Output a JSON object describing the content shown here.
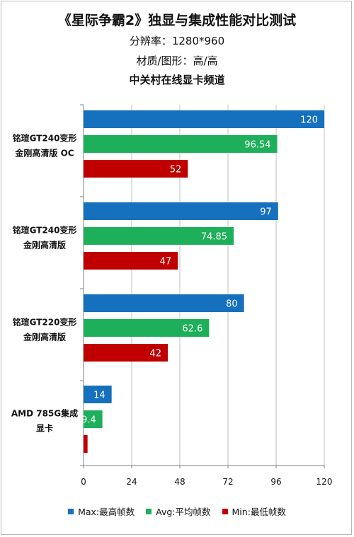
{
  "titles": {
    "main": "《星际争霸2》独显与集成性能对比测试",
    "resolution": "分辨率：1280*960",
    "quality": "材质/图形：高/高",
    "source": "中关村在线显卡频道"
  },
  "colors": {
    "max": "#1570BE",
    "avg": "#1EAF5A",
    "min": "#C00000",
    "grid": "#bfbfbf",
    "axis": "#7f7f7f"
  },
  "chart_data": {
    "type": "bar",
    "orientation": "horizontal",
    "categories": [
      [
        "铭瑄GT240变形",
        "金刚高清版 OC"
      ],
      [
        "铭瑄GT240变形",
        "金刚高清版"
      ],
      [
        "铭瑄GT220变形",
        "金刚高清版"
      ],
      [
        "AMD 785G集成",
        "显卡"
      ]
    ],
    "series": [
      {
        "name": "Max:最高帧数",
        "key": "max",
        "values": [
          120,
          97,
          80,
          14
        ]
      },
      {
        "name": "Avg:平均帧数",
        "key": "avg",
        "values": [
          96.54,
          74.85,
          62.6,
          9.4
        ]
      },
      {
        "name": "Min:最低帧数",
        "key": "min",
        "values": [
          52,
          47,
          42,
          2
        ]
      }
    ],
    "data_labels": [
      [
        "120",
        "96.54",
        "52"
      ],
      [
        "97",
        "74.85",
        "47"
      ],
      [
        "80",
        "62.6",
        "42"
      ],
      [
        "14",
        "9.4",
        ""
      ]
    ],
    "xlim": [
      0,
      120
    ],
    "xticks": [
      0,
      24,
      48,
      72,
      96,
      120
    ],
    "grid": true,
    "legend_position": "bottom"
  }
}
